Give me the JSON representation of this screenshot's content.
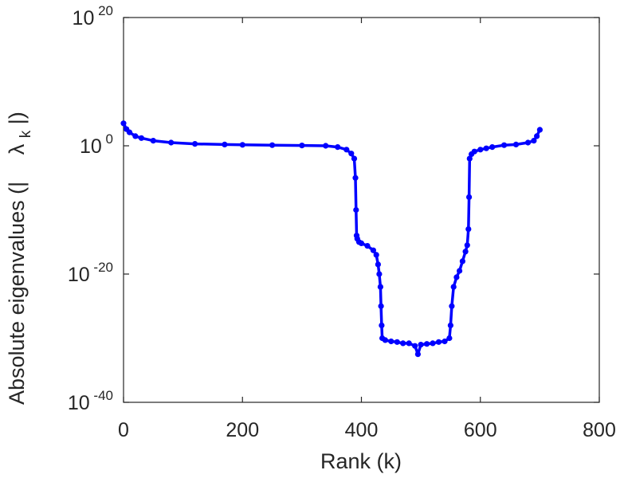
{
  "chart_data": {
    "type": "line",
    "title": "",
    "xlabel": "Rank (k)",
    "ylabel": {
      "text": "Absolute eigenvalues (|",
      "lambda": "λ",
      "subscript": "k",
      "suffix": "|)"
    },
    "xlim": [
      0,
      800
    ],
    "ylim_log10": [
      -40,
      20
    ],
    "yscale": "log",
    "grid": false,
    "legend": "none",
    "x_ticks": [
      "0",
      "200",
      "400",
      "600",
      "800"
    ],
    "y_ticks": [
      {
        "base": "10",
        "exp": "20"
      },
      {
        "base": "10",
        "exp": "0"
      },
      {
        "base": "10",
        "exp": "-20"
      },
      {
        "base": "10",
        "exp": "-40"
      }
    ],
    "series": [
      {
        "color": "#0000ff",
        "marker": "circle",
        "points_log10": [
          [
            0,
            3.5
          ],
          [
            5,
            2.6
          ],
          [
            10,
            2.1
          ],
          [
            20,
            1.5
          ],
          [
            30,
            1.2
          ],
          [
            50,
            0.8
          ],
          [
            80,
            0.5
          ],
          [
            120,
            0.3
          ],
          [
            170,
            0.2
          ],
          [
            200,
            0.15
          ],
          [
            250,
            0.1
          ],
          [
            300,
            0.05
          ],
          [
            340,
            0
          ],
          [
            360,
            -0.2
          ],
          [
            375,
            -0.6
          ],
          [
            383,
            -1.2
          ],
          [
            388,
            -2.0
          ],
          [
            390,
            -5
          ],
          [
            391,
            -10
          ],
          [
            392,
            -14
          ],
          [
            393,
            -14.5
          ],
          [
            396,
            -15
          ],
          [
            400,
            -15.2
          ],
          [
            410,
            -15.6
          ],
          [
            420,
            -16.3
          ],
          [
            425,
            -17
          ],
          [
            428,
            -18.5
          ],
          [
            430,
            -20
          ],
          [
            432,
            -22
          ],
          [
            433,
            -25
          ],
          [
            434,
            -28
          ],
          [
            435,
            -30
          ],
          [
            440,
            -30.3
          ],
          [
            450,
            -30.5
          ],
          [
            460,
            -30.6
          ],
          [
            470,
            -30.8
          ],
          [
            480,
            -30.8
          ],
          [
            490,
            -31.2
          ],
          [
            495,
            -32.5
          ],
          [
            500,
            -31
          ],
          [
            510,
            -30.9
          ],
          [
            520,
            -30.8
          ],
          [
            530,
            -30.6
          ],
          [
            540,
            -30.5
          ],
          [
            548,
            -30
          ],
          [
            550,
            -28
          ],
          [
            552,
            -25
          ],
          [
            555,
            -22
          ],
          [
            560,
            -20.5
          ],
          [
            565,
            -19.5
          ],
          [
            570,
            -18
          ],
          [
            575,
            -16.5
          ],
          [
            578,
            -15.5
          ],
          [
            580,
            -13
          ],
          [
            581,
            -8
          ],
          [
            582,
            -2
          ],
          [
            585,
            -1.3
          ],
          [
            590,
            -0.9
          ],
          [
            600,
            -0.6
          ],
          [
            610,
            -0.4
          ],
          [
            620,
            -0.2
          ],
          [
            640,
            0.1
          ],
          [
            660,
            0.2
          ],
          [
            680,
            0.5
          ],
          [
            690,
            0.8
          ],
          [
            695,
            1.5
          ],
          [
            700,
            2.5
          ]
        ]
      }
    ]
  }
}
